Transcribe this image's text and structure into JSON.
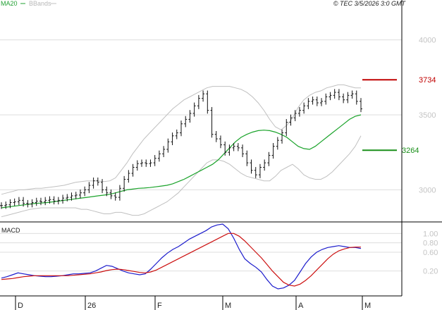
{
  "header": {
    "ma_label": "MA20",
    "bb_label": "BBands",
    "timestamp": "© TEC 3/5/2026 3:0 GMT"
  },
  "colors": {
    "price_bars": "#111111",
    "ma20": "#1aa32a",
    "bbands": "#c0c0c0",
    "resistance": "#c00000",
    "support": "#1a8f1a",
    "macd_line": "#1c1ccc",
    "signal_line": "#cc1111",
    "grid": "#dedede",
    "axis": "#000000"
  },
  "chart_data": [
    {
      "type": "line",
      "panel": "price",
      "ylim": [
        2800,
        4200
      ],
      "y_ticks": [
        3000,
        3500,
        4000
      ],
      "y_tick_labels": [
        "3000",
        "3500",
        "4000"
      ],
      "x_ticks": [
        "D",
        "26",
        "F",
        "M",
        "A",
        "M"
      ],
      "series": [
        {
          "name": "MA20",
          "style": "line",
          "values": [
            2880,
            2885,
            2890,
            2895,
            2900,
            2905,
            2910,
            2912,
            2915,
            2920,
            2925,
            2930,
            2935,
            2940,
            2945,
            2950,
            2955,
            2960,
            2965,
            2970,
            2980,
            2990,
            3000,
            3005,
            3010,
            3012,
            3015,
            3020,
            3025,
            3030,
            3040,
            3055,
            3070,
            3090,
            3110,
            3130,
            3150,
            3170,
            3200,
            3240,
            3280,
            3320,
            3350,
            3370,
            3385,
            3395,
            3398,
            3395,
            3385,
            3370,
            3350,
            3320,
            3290,
            3275,
            3270,
            3290,
            3320,
            3350,
            3380,
            3410,
            3440,
            3470,
            3490,
            3500
          ]
        },
        {
          "name": "BBands upper",
          "style": "band",
          "values": [
            2970,
            2980,
            2990,
            3000,
            3000,
            3005,
            3010,
            3010,
            3015,
            3020,
            3025,
            3030,
            3040,
            3050,
            3055,
            3060,
            3060,
            3060,
            3055,
            3060,
            3080,
            3130,
            3180,
            3240,
            3290,
            3340,
            3380,
            3420,
            3460,
            3500,
            3540,
            3570,
            3600,
            3620,
            3640,
            3660,
            3680,
            3690,
            3690,
            3690,
            3690,
            3680,
            3670,
            3650,
            3620,
            3580,
            3530,
            3470,
            3420,
            3400,
            3430,
            3480,
            3550,
            3600,
            3630,
            3650,
            3660,
            3680,
            3690,
            3700,
            3700,
            3690,
            3680,
            3680
          ]
        },
        {
          "name": "BBands lower",
          "style": "band",
          "values": [
            2820,
            2830,
            2840,
            2850,
            2860,
            2870,
            2875,
            2880,
            2880,
            2880,
            2880,
            2880,
            2880,
            2880,
            2870,
            2870,
            2860,
            2850,
            2840,
            2840,
            2850,
            2850,
            2840,
            2830,
            2830,
            2840,
            2860,
            2880,
            2900,
            2920,
            2950,
            2980,
            3020,
            3060,
            3100,
            3140,
            3180,
            3200,
            3200,
            3190,
            3170,
            3140,
            3110,
            3090,
            3080,
            3070,
            3060,
            3060,
            3090,
            3130,
            3150,
            3170,
            3140,
            3100,
            3080,
            3070,
            3070,
            3090,
            3120,
            3160,
            3200,
            3240,
            3290,
            3360
          ]
        },
        {
          "name": "Price",
          "style": "ohlc",
          "values": [
            2895,
            2900,
            2915,
            2920,
            2930,
            2910,
            2905,
            2915,
            2925,
            2920,
            2930,
            2935,
            2925,
            2930,
            2945,
            2950,
            2960,
            2965,
            2980,
            3000,
            3030,
            3060,
            3050,
            3000,
            2980,
            2960,
            2950,
            3010,
            3070,
            3110,
            3150,
            3175,
            3180,
            3175,
            3180,
            3210,
            3240,
            3270,
            3320,
            3360,
            3380,
            3440,
            3470,
            3510,
            3560,
            3610,
            3640,
            3530,
            3370,
            3340,
            3300,
            3250,
            3280,
            3290,
            3280,
            3240,
            3180,
            3130,
            3100,
            3150,
            3180,
            3230,
            3290,
            3330,
            3380,
            3450,
            3480,
            3510,
            3530,
            3560,
            3590,
            3600,
            3580,
            3590,
            3620,
            3630,
            3650,
            3620,
            3600,
            3630,
            3640,
            3590,
            3540
          ]
        }
      ],
      "levels": [
        {
          "name": "resistance",
          "value": 3734,
          "label": "3734"
        },
        {
          "name": "support",
          "value": 3264,
          "label": "3264"
        }
      ]
    },
    {
      "type": "line",
      "panel": "indicator",
      "title": "MACD",
      "ylim": [
        -30,
        120
      ],
      "y_ticks": [
        20,
        60,
        80,
        100
      ],
      "y_tick_labels": [
        "0.20",
        "0.60",
        "0.80",
        "1.00"
      ],
      "series": [
        {
          "name": "MACD",
          "values": [
            5,
            8,
            12,
            16,
            14,
            12,
            10,
            9,
            8,
            8,
            9,
            10,
            12,
            14,
            14,
            15,
            16,
            20,
            26,
            32,
            30,
            25,
            20,
            16,
            14,
            12,
            14,
            24,
            36,
            48,
            58,
            66,
            72,
            80,
            88,
            94,
            100,
            106,
            114,
            118,
            120,
            110,
            90,
            66,
            46,
            36,
            28,
            18,
            2,
            -12,
            -18,
            -16,
            -10,
            0,
            18,
            36,
            50,
            60,
            66,
            70,
            72,
            74,
            72,
            70,
            70,
            68
          ]
        },
        {
          "name": "Signal",
          "values": [
            2,
            3,
            4,
            6,
            8,
            9,
            10,
            10,
            10,
            10,
            10,
            10,
            10,
            11,
            12,
            13,
            14,
            16,
            18,
            21,
            23,
            24,
            23,
            21,
            19,
            17,
            16,
            18,
            22,
            28,
            34,
            40,
            46,
            52,
            58,
            64,
            70,
            76,
            82,
            88,
            94,
            100,
            100,
            94,
            84,
            72,
            60,
            48,
            34,
            20,
            8,
            -4,
            -10,
            -12,
            -8,
            0,
            10,
            22,
            34,
            46,
            56,
            63,
            67,
            70,
            71,
            71
          ]
        }
      ]
    }
  ]
}
